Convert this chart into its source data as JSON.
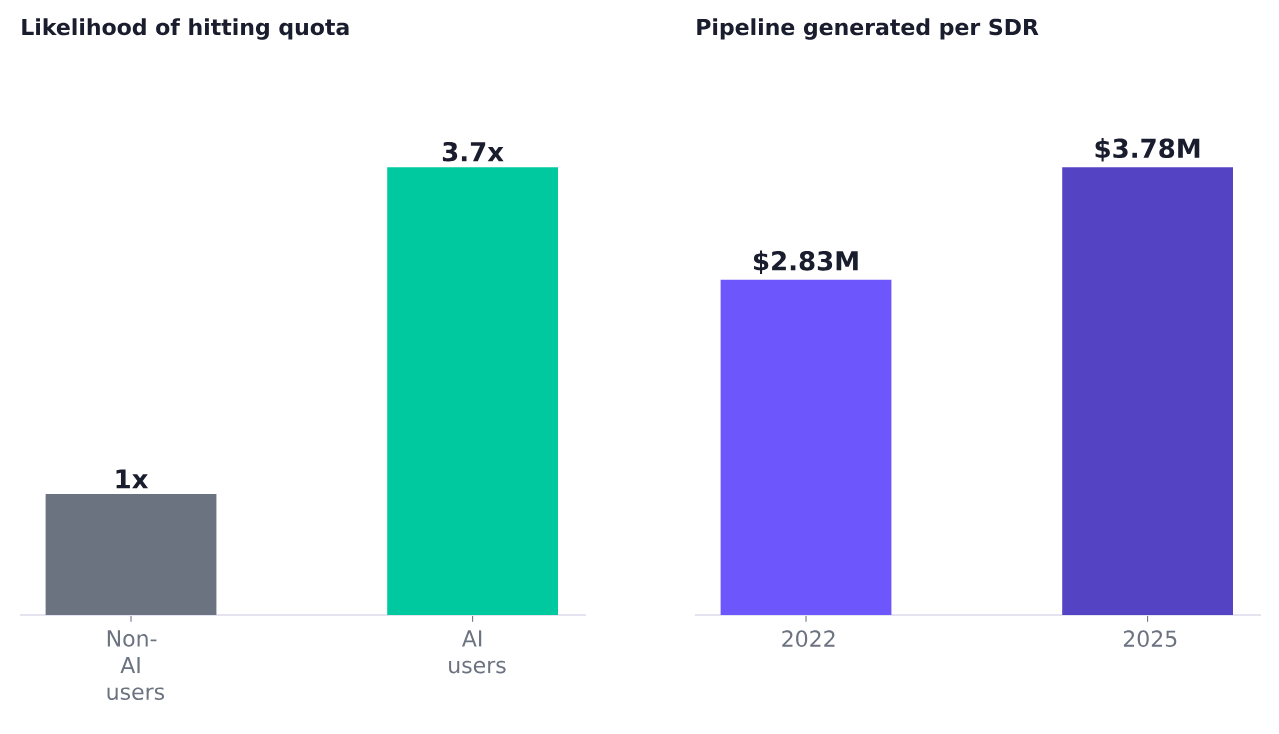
{
  "chart_data": [
    {
      "type": "bar",
      "title": "Likelihood of hitting quota",
      "categories": [
        "Non-AI users",
        "AI users"
      ],
      "values": [
        1,
        3.7
      ],
      "colors": [
        "#6b7280",
        "#00c9a0"
      ],
      "value_labels": [
        "1x",
        "3.7x"
      ],
      "tick_labels": "x"
    },
    {
      "type": "bar",
      "title": "Pipeline generated per SDR",
      "categories": [
        "2022",
        "2025"
      ],
      "values": [
        2.83,
        3.78
      ],
      "colors": [
        "#6e56fd",
        "#5443c3"
      ],
      "value_labels": [
        "$2.83M",
        "$3.78M"
      ],
      "tick_labels": "x"
    }
  ]
}
